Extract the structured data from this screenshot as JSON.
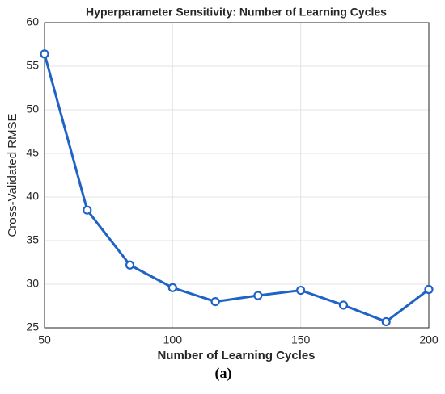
{
  "chart_data": {
    "type": "line",
    "title": "Hyperparameter Sensitivity: Number of Learning Cycles",
    "xlabel": "Number of Learning Cycles",
    "ylabel": "Cross-Validated RMSE",
    "caption": "(a)",
    "x": [
      50,
      66.67,
      83.33,
      100,
      116.67,
      133.33,
      150,
      166.67,
      183.33,
      200
    ],
    "series": [
      {
        "name": "RMSE",
        "color": "#1f63c6",
        "values": [
          56.4,
          38.5,
          32.2,
          29.6,
          28.0,
          28.7,
          29.3,
          27.6,
          25.7,
          29.4
        ]
      }
    ],
    "xlim": [
      50,
      200
    ],
    "xticks": [
      50,
      100,
      150,
      200
    ],
    "ylim": [
      25,
      60
    ],
    "yticks": [
      25,
      30,
      35,
      40,
      45,
      50,
      55,
      60
    ],
    "grid": true
  }
}
